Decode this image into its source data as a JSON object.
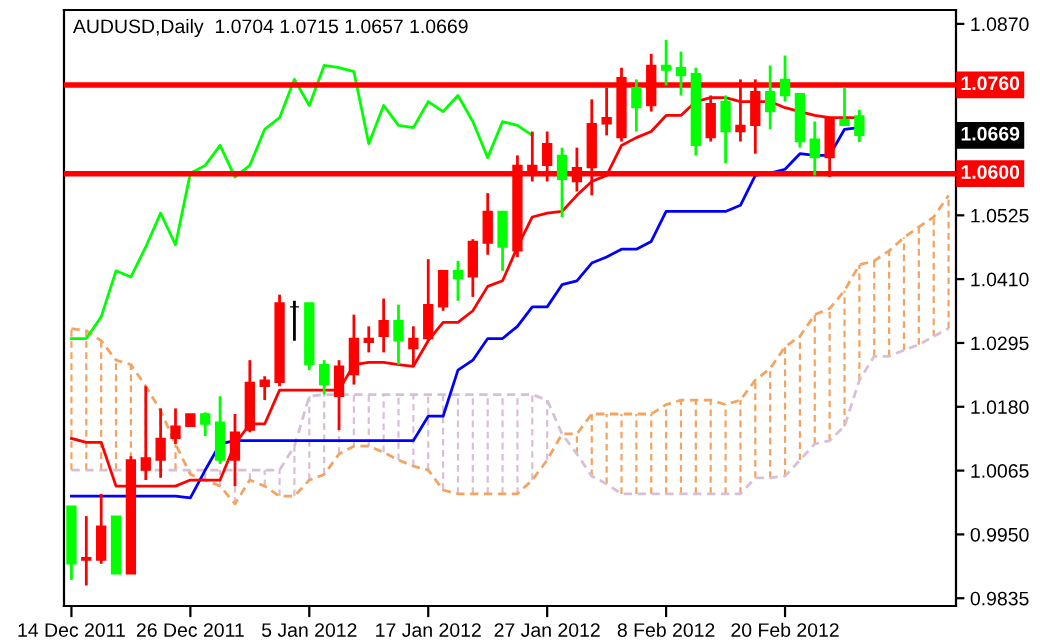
{
  "chart_data": {
    "type": "candlestick",
    "title": "AUDUSD,Daily  1.0704 1.0715 1.0657 1.0669",
    "categories": [
      "14 Dec 2011",
      null,
      null,
      null,
      null,
      null,
      null,
      null,
      "26 Dec 2011",
      null,
      null,
      null,
      null,
      null,
      null,
      null,
      "5 Jan 2012",
      null,
      null,
      null,
      null,
      null,
      null,
      null,
      "17 Jan 2012",
      null,
      null,
      null,
      null,
      null,
      null,
      null,
      "27 Jan 2012",
      null,
      null,
      null,
      null,
      null,
      null,
      null,
      "8 Feb 2012",
      null,
      null,
      null,
      null,
      null,
      null,
      null,
      "20 Feb 2012",
      null,
      null,
      null,
      null,
      null,
      null,
      null,
      null,
      null,
      null,
      null
    ],
    "ohlc": [
      [
        1.0001,
        1.0001,
        0.9868,
        0.9897
      ],
      [
        0.9904,
        0.9983,
        0.9858,
        0.9908
      ],
      [
        0.9904,
        1.0023,
        0.9897,
        0.9965
      ],
      [
        0.9983,
        0.9983,
        0.9879,
        0.9879
      ],
      [
        0.9879,
        1.0091,
        0.9879,
        1.0084
      ],
      [
        1.0066,
        1.0217,
        1.0048,
        1.0088
      ],
      [
        1.0084,
        1.0177,
        1.0052,
        1.0123
      ],
      [
        1.0123,
        1.0177,
        1.0113,
        1.0145
      ],
      [
        1.0145,
        1.0167,
        1.0145,
        1.0167
      ],
      [
        1.0167,
        1.017,
        1.0127,
        1.0149
      ],
      [
        1.0152,
        1.0199,
        1.0077,
        1.0084
      ],
      [
        1.0084,
        1.0167,
        1.0037,
        1.0134
      ],
      [
        1.0138,
        1.0264,
        1.0134,
        1.0224
      ],
      [
        1.0217,
        1.0235,
        1.0192,
        1.0228
      ],
      [
        1.0224,
        1.0382,
        1.0217,
        1.0367
      ],
      [
        1.036,
        1.0371,
        1.0299,
        1.036
      ],
      [
        1.0367,
        1.0367,
        1.0246,
        1.0256
      ],
      [
        1.0256,
        1.0264,
        1.0202,
        1.022
      ],
      [
        1.0199,
        1.0264,
        1.0138,
        1.0253
      ],
      [
        1.0238,
        1.0346,
        1.022,
        1.0303
      ],
      [
        1.0296,
        1.0325,
        1.0278,
        1.0303
      ],
      [
        1.0307,
        1.0375,
        1.0278,
        1.0335
      ],
      [
        1.0335,
        1.0364,
        1.0256,
        1.0299
      ],
      [
        1.0285,
        1.0325,
        1.0253,
        1.0303
      ],
      [
        1.0303,
        1.0446,
        1.0299,
        1.0364
      ],
      [
        1.036,
        1.0425,
        1.0353,
        1.0425
      ],
      [
        1.0425,
        1.0443,
        1.0371,
        1.0411
      ],
      [
        1.0414,
        1.0482,
        1.0378,
        1.0478
      ],
      [
        1.0475,
        1.0565,
        1.0454,
        1.0532
      ],
      [
        1.0532,
        1.0532,
        1.0425,
        1.0468
      ],
      [
        1.0461,
        1.0633,
        1.045,
        1.0615
      ],
      [
        1.0597,
        1.0676,
        1.0586,
        1.0615
      ],
      [
        1.0615,
        1.0676,
        1.0586,
        1.0654
      ],
      [
        1.0633,
        1.0647,
        1.0522,
        1.059
      ],
      [
        1.0586,
        1.0647,
        1.0568,
        1.0611
      ],
      [
        1.0611,
        1.0734,
        1.0561,
        1.069
      ],
      [
        1.069,
        1.0755,
        1.0669,
        1.0701
      ],
      [
        1.0665,
        1.0791,
        1.0658,
        1.0773
      ],
      [
        1.0755,
        1.077,
        1.0676,
        1.0719
      ],
      [
        1.0723,
        1.0816,
        1.0712,
        1.0795
      ],
      [
        1.0795,
        1.0841,
        1.0759,
        1.0787
      ],
      [
        1.0791,
        1.082,
        1.0741,
        1.0777
      ],
      [
        1.078,
        1.0791,
        1.0633,
        1.0651
      ],
      [
        1.0665,
        1.0741,
        1.0658,
        1.0726
      ],
      [
        1.073,
        1.0741,
        1.0619,
        1.0676
      ],
      [
        1.0676,
        1.077,
        1.0658,
        1.0687
      ],
      [
        1.0687,
        1.077,
        1.0636,
        1.0748
      ],
      [
        1.0748,
        1.0795,
        1.068,
        1.0712
      ],
      [
        1.077,
        1.0813,
        1.073,
        1.0741
      ],
      [
        1.0744,
        1.0744,
        1.0647,
        1.0658
      ],
      [
        1.0662,
        1.0694,
        1.0597,
        1.0629
      ],
      [
        1.0629,
        1.0701,
        1.0594,
        1.0701
      ],
      [
        1.0698,
        1.0755,
        1.0687,
        1.0687
      ],
      [
        1.0704,
        1.0715,
        1.0657,
        1.0669
      ],
      null,
      null,
      null,
      null,
      null,
      null
    ],
    "colors": [
      "#00ff00",
      "#ff0000",
      "#ff0000",
      "#00ff00",
      "#ff0000",
      "#ff0000",
      "#ff0000",
      "#ff0000",
      "#ff0000",
      "#00ff00",
      "#00ff00",
      "#ff0000",
      "#ff0000",
      "#ff0000",
      "#ff0000",
      "#000000",
      "#00ff00",
      "#00ff00",
      "#ff0000",
      "#ff0000",
      "#ff0000",
      "#ff0000",
      "#00ff00",
      "#ff0000",
      "#ff0000",
      "#ff0000",
      "#00ff00",
      "#ff0000",
      "#ff0000",
      "#00ff00",
      "#ff0000",
      "#ff0000",
      "#ff0000",
      "#00ff00",
      "#ff0000",
      "#ff0000",
      "#ff0000",
      "#ff0000",
      "#00ff00",
      "#ff0000",
      "#00ff00",
      "#00ff00",
      "#00ff00",
      "#ff0000",
      "#00ff00",
      "#ff0000",
      "#ff0000",
      "#00ff00",
      "#00ff00",
      "#00ff00",
      "#00ff00",
      "#ff0000",
      "#00ff00",
      "#00ff00",
      null,
      null,
      null,
      null,
      null,
      null
    ],
    "series": [
      {
        "type": "line",
        "line_style": "dashed",
        "color": "#f4a460",
        "values": [
          1.0321,
          1.0317,
          1.0299,
          1.0264,
          1.0256,
          1.0217,
          1.0173,
          1.0113,
          1.0058,
          1.0048,
          1.0037,
          1.0005,
          1.0048,
          1.0037,
          1.0019,
          1.0019,
          1.0048,
          1.0058,
          1.0095,
          1.0109,
          1.0109,
          1.0098,
          1.0084,
          1.0073,
          1.0066,
          1.003,
          1.0023,
          1.0023,
          1.0023,
          1.0023,
          1.0023,
          1.0048,
          1.0084,
          1.0131,
          1.0131,
          1.0167,
          1.0167,
          1.0167,
          1.0167,
          1.0167,
          1.0184,
          1.0192,
          1.0192,
          1.0192,
          1.0184,
          1.0192,
          1.0228,
          1.0249,
          1.0288,
          1.0307,
          1.0346,
          1.0357,
          1.0389,
          1.0436,
          1.0443,
          1.0461,
          1.0485,
          1.0504,
          1.0522,
          1.0561
        ]
      },
      {
        "type": "line",
        "line_style": "dashed",
        "color": "#d8bfd8",
        "values": [
          1.0066,
          1.0066,
          1.0066,
          1.0066,
          1.0066,
          1.0066,
          1.0066,
          1.0066,
          1.0066,
          1.0066,
          1.0066,
          1.0066,
          1.0066,
          1.0066,
          1.0066,
          1.0109,
          1.0199,
          1.0202,
          1.0202,
          1.0202,
          1.0202,
          1.0202,
          1.0202,
          1.0202,
          1.0202,
          1.0202,
          1.0202,
          1.0202,
          1.0202,
          1.0202,
          1.0202,
          1.0202,
          1.0192,
          1.0131,
          1.0095,
          1.0055,
          1.0041,
          1.0023,
          1.0023,
          1.0023,
          1.0023,
          1.0023,
          1.0023,
          1.0023,
          1.0023,
          1.0023,
          1.0052,
          1.0052,
          1.0055,
          1.0084,
          1.0113,
          1.0119,
          1.0145,
          1.0228,
          1.0271,
          1.0271,
          1.0282,
          1.0292,
          1.0307,
          1.0321
        ]
      },
      {
        "type": "line",
        "line_style": "solid",
        "color": "#0000ff",
        "values": [
          1.0019,
          1.0019,
          1.0019,
          1.0019,
          1.0019,
          1.0019,
          1.0019,
          1.0019,
          1.0016,
          1.0066,
          1.0113,
          1.0119,
          1.0119,
          1.0119,
          1.0119,
          1.0119,
          1.0119,
          1.0119,
          1.0119,
          1.0119,
          1.0119,
          1.0119,
          1.0119,
          1.0119,
          1.0163,
          1.0163,
          1.0246,
          1.0264,
          1.0303,
          1.0303,
          1.0325,
          1.036,
          1.036,
          1.04,
          1.0407,
          1.0439,
          1.045,
          1.0464,
          1.0464,
          1.0478,
          1.0532,
          1.0532,
          1.0532,
          1.0532,
          1.0532,
          1.0543,
          1.0597,
          1.0601,
          1.0608,
          1.0636,
          1.0633,
          1.0633,
          1.068,
          1.0683,
          null,
          null,
          null,
          null,
          null,
          null
        ]
      },
      {
        "type": "line",
        "line_style": "solid",
        "color": "#ff0000",
        "values": [
          1.0123,
          1.0116,
          1.0116,
          1.0037,
          1.0037,
          1.0037,
          1.0037,
          1.0037,
          1.0048,
          1.0048,
          1.0048,
          1.0113,
          1.0149,
          1.0149,
          1.021,
          1.021,
          1.021,
          1.021,
          1.021,
          1.0256,
          1.026,
          1.026,
          1.0256,
          1.0253,
          1.0299,
          1.0332,
          1.0332,
          1.0353,
          1.0397,
          1.0407,
          1.0468,
          1.0522,
          1.0529,
          1.0532,
          1.0561,
          1.0586,
          1.0597,
          1.0651,
          1.0665,
          1.0676,
          1.0705,
          1.0705,
          1.073,
          1.0737,
          1.0737,
          1.073,
          1.073,
          1.073,
          1.0719,
          1.0712,
          1.0705,
          1.0701,
          1.0701,
          1.0701,
          null,
          null,
          null,
          null,
          null,
          null
        ]
      },
      {
        "type": "line",
        "line_style": "solid",
        "color": "#00ff00",
        "values": [
          1.0303,
          1.0303,
          1.0342,
          1.0425,
          1.0414,
          1.0468,
          1.0529,
          1.0472,
          1.0601,
          1.0615,
          1.0651,
          1.0594,
          1.0615,
          1.068,
          1.0701,
          1.077,
          1.0723,
          1.0795,
          1.0791,
          1.0784,
          1.0654,
          1.0723,
          1.0687,
          1.0683,
          1.073,
          1.0712,
          1.0741,
          1.0694,
          1.0629,
          1.0694,
          1.0687,
          1.0669,
          null,
          null,
          null,
          null,
          null,
          null,
          null,
          null,
          null,
          null,
          null,
          null,
          null,
          null,
          null,
          null,
          null,
          null,
          null,
          null,
          null,
          null,
          null,
          null,
          null,
          null,
          null,
          null
        ]
      }
    ],
    "ylim": [
      0.9821,
      1.0895
    ],
    "yticks": [
      {
        "value": 1.087,
        "label": "1.0870"
      },
      {
        "value": 1.0525,
        "label": "1.0525"
      },
      {
        "value": 1.041,
        "label": "1.0410"
      },
      {
        "value": 1.0295,
        "label": "1.0295"
      },
      {
        "value": 1.018,
        "label": "1.0180"
      },
      {
        "value": 1.0065,
        "label": "1.0065"
      },
      {
        "value": 0.995,
        "label": "0.9950"
      },
      {
        "value": 0.9835,
        "label": "0.9835"
      }
    ],
    "ref_lines": [
      {
        "axis": "y",
        "value": 1.076,
        "label": "1.0760",
        "color": "#ff0000"
      },
      {
        "axis": "y",
        "value": 1.06,
        "label": "1.0600",
        "color": "#ff0000"
      }
    ],
    "annotations": [
      "1.0669"
    ],
    "grid": false,
    "legend": false
  }
}
